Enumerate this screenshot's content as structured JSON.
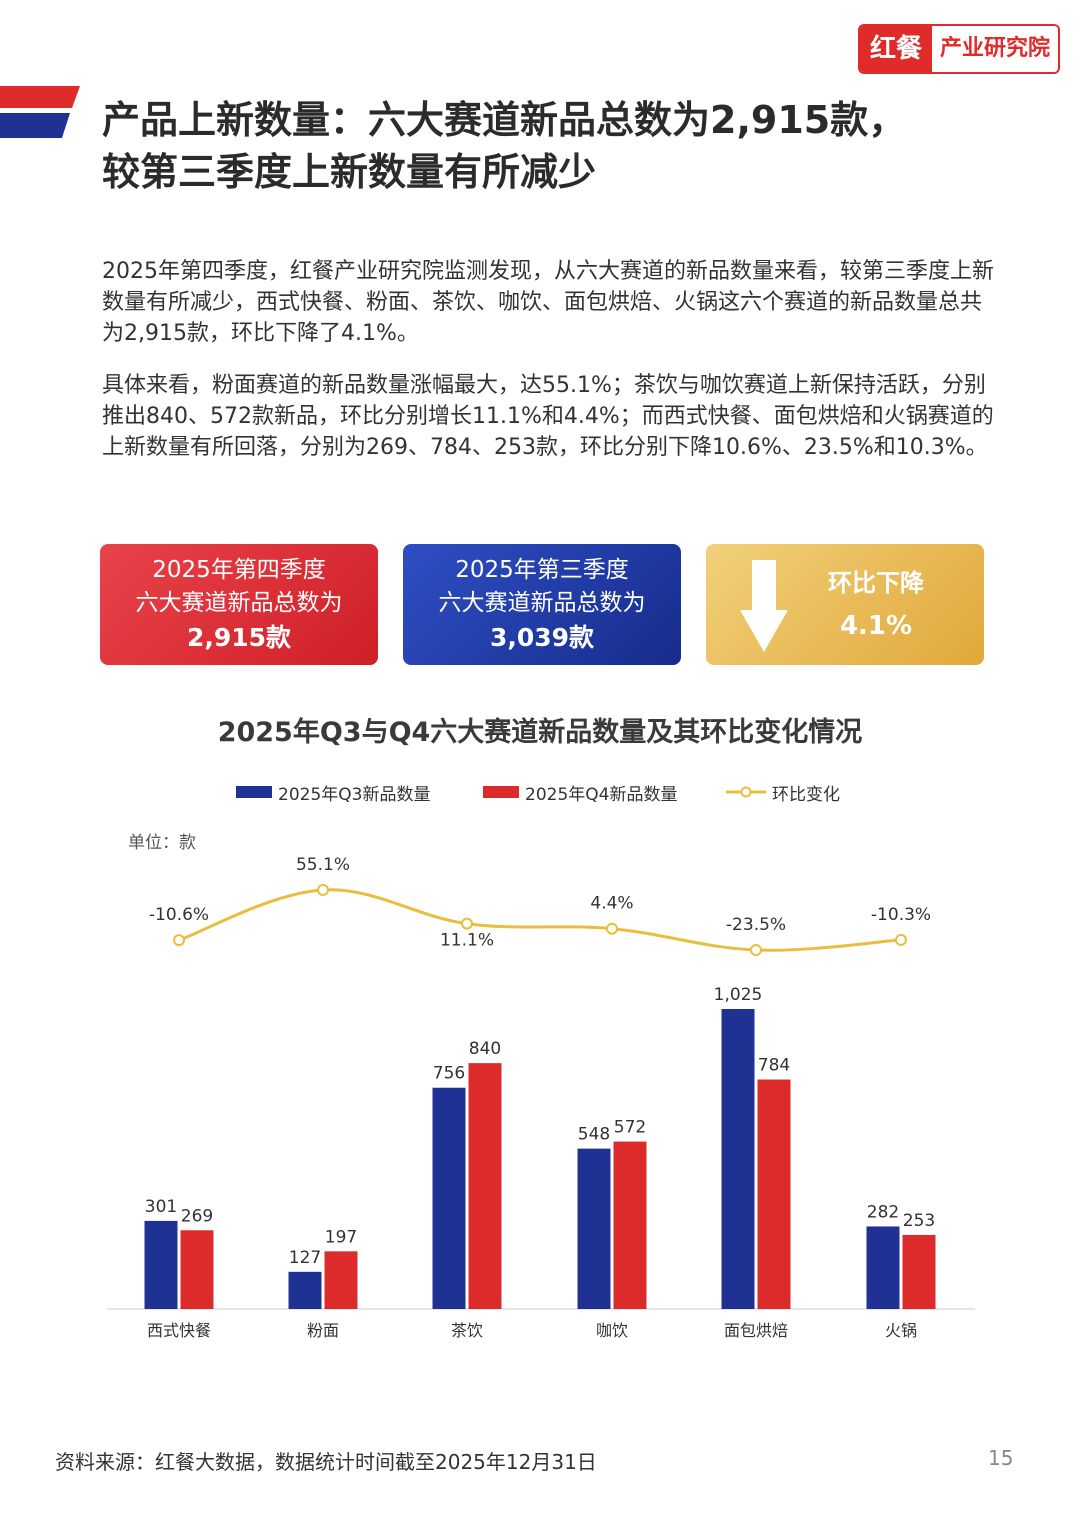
{
  "header": {
    "logo_left": "红餐",
    "logo_right": "产业研究院",
    "title_line1": "产品上新数量：六大赛道新品总数为2,915款，",
    "title_line2": "较第三季度上新数量有所减少"
  },
  "body": {
    "para1": "2025年第四季度，红餐产业研究院监测发现，从六大赛道的新品数量来看，较第三季度上新数量有所减少，西式快餐、粉面、茶饮、咖饮、面包烘焙、火锅这六个赛道的新品数量总共为2,915款，环比下降了4.1%。",
    "para2": "具体来看，粉面赛道的新品数量涨幅最大，达55.1%；茶饮与咖饮赛道上新保持活跃，分别推出840、572款新品，环比分别增长11.1%和4.4%；而西式快餐、面包烘焙和火锅赛道的上新数量有所回落，分别为269、784、253款，环比分别下降10.6%、23.5%和10.3%。"
  },
  "cards": {
    "q4": {
      "line1": "2025年第四季度",
      "line2": "六大赛道新品总数为",
      "value": "2,915款"
    },
    "q3": {
      "line1": "2025年第三季度",
      "line2": "六大赛道新品总数为",
      "value": "3,039款"
    },
    "change": {
      "label": "环比下降",
      "value": "4.1%"
    }
  },
  "chart_data": {
    "type": "bar",
    "title": "2025年Q3与Q4六大赛道新品数量及其环比变化情况",
    "unit": "单位：款",
    "categories": [
      "西式快餐",
      "粉面",
      "茶饮",
      "咖饮",
      "面包烘焙",
      "火锅"
    ],
    "series": [
      {
        "name": "2025年Q3新品数量",
        "type": "bar",
        "color": "#1f3192",
        "values": [
          301,
          127,
          756,
          548,
          1025,
          282
        ],
        "labels": [
          "301",
          "127",
          "756",
          "548",
          "1,025",
          "282"
        ]
      },
      {
        "name": "2025年Q4新品数量",
        "type": "bar",
        "color": "#dd2b2b",
        "values": [
          269,
          197,
          840,
          572,
          784,
          253
        ],
        "labels": [
          "269",
          "197",
          "840",
          "572",
          "784",
          "253"
        ]
      },
      {
        "name": "环比变化",
        "type": "line",
        "color": "#e9be3e",
        "values": [
          -10.6,
          55.1,
          11.1,
          4.4,
          -23.5,
          -10.3
        ],
        "labels": [
          "-10.6%",
          "55.1%",
          "11.1%",
          "4.4%",
          "-23.5%",
          "-10.3%"
        ]
      }
    ],
    "ylim": [
      0,
      1025
    ],
    "line_ylim": [
      -23.5,
      55.1
    ],
    "legend": "top-center",
    "grid": false
  },
  "footer": {
    "source": "资料来源：红餐大数据，数据统计时间截至2025年12月31日",
    "page": "15"
  }
}
